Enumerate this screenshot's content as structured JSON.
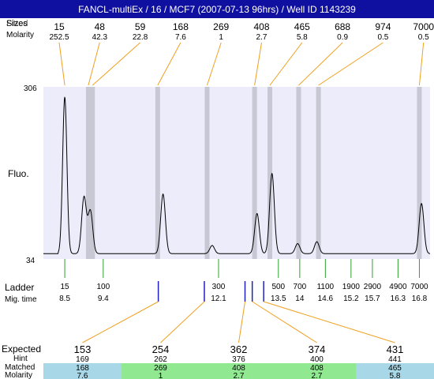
{
  "title": "FANCL-multiEx / 16 / MCF7 (2007-07-13 96hrs) / Well ID 1143239",
  "labels": {
    "fitted_overlap": "Fitted",
    "sizes_row": "Sizes",
    "molarity_row": "Molarity",
    "fluo": "Fluo.",
    "ladder": "Ladder",
    "mig_time": "Mig. time",
    "expected": "Expected",
    "hint": "Hint",
    "matched": "Matched",
    "molarity_bottom": "Molarity"
  },
  "colors": {
    "title_bg": "#1010a0",
    "plot_bg": "#ececfa",
    "orange": "#f0a020",
    "green": "#30a030",
    "blue": "#2020c0",
    "expected_red": "#e02020",
    "matched_blue": "#a8d8e8",
    "matched_green": "#90e890"
  },
  "chart_data": {
    "type": "line",
    "title": "FANCL-multiEx / 16 / MCF7 (2007-07-13 96hrs) / Well ID 1143239",
    "ylabel": "Fluo.",
    "ylim": [
      34,
      306
    ],
    "y_ticks": [
      "306",
      "34"
    ],
    "fitted_peaks": [
      {
        "size": "15",
        "molarity": "252.5"
      },
      {
        "size": "48",
        "molarity": "42.3"
      },
      {
        "size": "59",
        "molarity": "22.8"
      },
      {
        "size": "168",
        "molarity": "7.6"
      },
      {
        "size": "269",
        "molarity": "1"
      },
      {
        "size": "408",
        "molarity": "2.7"
      },
      {
        "size": "465",
        "molarity": "5.8"
      },
      {
        "size": "688",
        "molarity": "0.9"
      },
      {
        "size": "974",
        "molarity": "0.5"
      },
      {
        "size": "7000",
        "molarity": "0.5"
      }
    ],
    "ladder": [
      {
        "size": "15",
        "time": "8.5"
      },
      {
        "size": "100",
        "time": "9.4"
      },
      {
        "size": "300",
        "time": "12.1"
      },
      {
        "size": "500",
        "time": "13.5"
      },
      {
        "size": "700",
        "time": "14"
      },
      {
        "size": "1100",
        "time": "14.6"
      },
      {
        "size": "1900",
        "time": "15.2"
      },
      {
        "size": "2900",
        "time": "15.7"
      },
      {
        "size": "4900",
        "time": "16.3"
      },
      {
        "size": "7000",
        "time": "16.8"
      }
    ],
    "expected": [
      {
        "expected": "153",
        "hint": "169",
        "matched": "168",
        "molarity": "7.6",
        "flag": true
      },
      {
        "expected": "254",
        "hint": "262",
        "matched": "269",
        "molarity": "1",
        "flag": false
      },
      {
        "expected": "362",
        "hint": "376",
        "matched": "408",
        "molarity": "2.7",
        "flag": false
      },
      {
        "expected": "374",
        "hint": "400",
        "matched": "408",
        "molarity": "2.7",
        "flag": false
      },
      {
        "expected": "431",
        "hint": "441",
        "matched": "465",
        "molarity": "5.8",
        "flag": true
      }
    ],
    "trace_peaks": [
      {
        "time": 8.5,
        "height": 290
      },
      {
        "time": 8.95,
        "height": 130
      },
      {
        "time": 9.1,
        "height": 108
      },
      {
        "time": 10.8,
        "height": 135
      },
      {
        "time": 11.95,
        "height": 53
      },
      {
        "time": 13.0,
        "height": 104
      },
      {
        "time": 13.35,
        "height": 168
      },
      {
        "time": 13.95,
        "height": 56
      },
      {
        "time": 14.4,
        "height": 59
      },
      {
        "time": 16.85,
        "height": 120
      }
    ]
  }
}
